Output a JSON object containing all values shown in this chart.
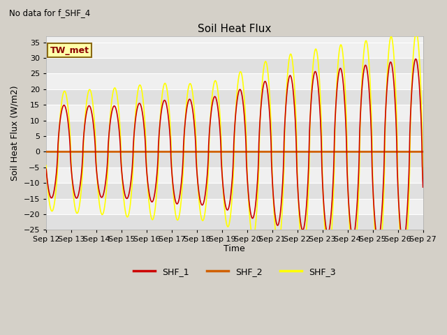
{
  "title": "Soil Heat Flux",
  "top_left_text": "No data for f_SHF_4",
  "ylabel": "Soil Heat Flux (W/m2)",
  "xlabel": "Time",
  "ylim": [
    -25,
    37
  ],
  "yticks": [
    -25,
    -20,
    -15,
    -10,
    -5,
    0,
    5,
    10,
    15,
    20,
    25,
    30,
    35
  ],
  "xtick_labels": [
    "Sep 12",
    "Sep 13",
    "Sep 14",
    "Sep 15",
    "Sep 16",
    "Sep 17",
    "Sep 18",
    "Sep 19",
    "Sep 20",
    "Sep 21",
    "Sep 22",
    "Sep 23",
    "Sep 24",
    "Sep 25",
    "Sep 26",
    "Sep 27"
  ],
  "fig_bg": "#d4d0c8",
  "band_light": "#f0f0f0",
  "band_dark": "#e0e0e0",
  "shf1_color": "#cc0000",
  "shf2_color": "#d06000",
  "shf3_color": "#ffff00",
  "legend_box_label": "TW_met",
  "legend_entries": [
    "SHF_1",
    "SHF_2",
    "SHF_3"
  ]
}
